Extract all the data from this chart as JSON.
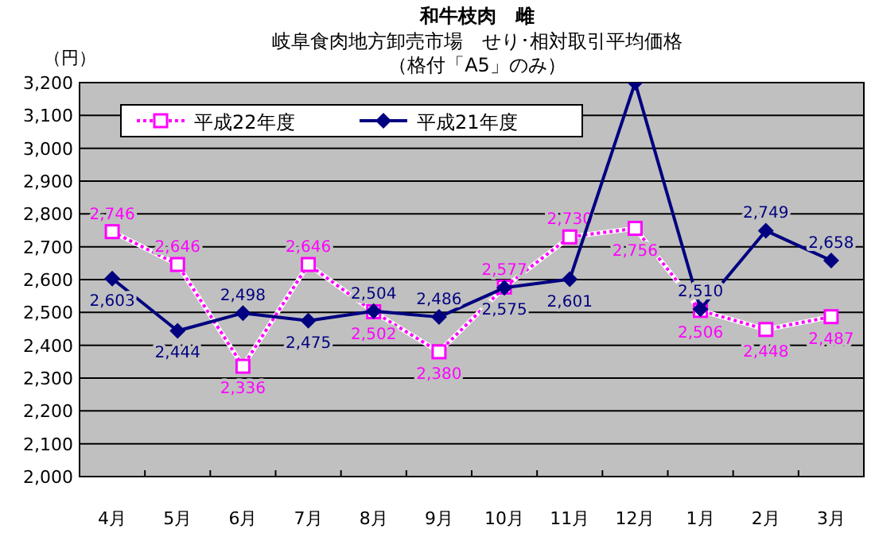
{
  "chart_data": {
    "type": "line",
    "title": "和牛枝肉　雌",
    "subtitle": "岐阜食肉地方卸売市場　せり･相対取引平均価格",
    "annotations": [
      "（格付「A5」のみ）"
    ],
    "ylabel": "（円）",
    "categories": [
      "4月",
      "5月",
      "6月",
      "7月",
      "8月",
      "9月",
      "10月",
      "11月",
      "12月",
      "1月",
      "2月",
      "3月"
    ],
    "series": [
      {
        "name": "平成22年度",
        "color": "#ff00ff",
        "marker": "square",
        "line_style": "dotted",
        "values": [
          2746,
          2646,
          2336,
          2646,
          2502,
          2380,
          2577,
          2730,
          2756,
          2506,
          2448,
          2487
        ],
        "value_labels": [
          "2,746",
          "2,646",
          "2,336",
          "2,646",
          "2,502",
          "2,380",
          "2,577",
          "2,730",
          "2,756",
          "2,506",
          "2,448",
          "2,487"
        ]
      },
      {
        "name": "平成21年度",
        "color": "#000080",
        "marker": "diamond",
        "line_style": "solid",
        "values": [
          2603,
          2444,
          2498,
          2475,
          2504,
          2486,
          2575,
          2601,
          3200,
          2510,
          2749,
          2658
        ],
        "value_labels": [
          "2,603",
          "2,444",
          "2,498",
          "2,475",
          "2,504",
          "2,486",
          "2,575",
          "2,601",
          null,
          "2,510",
          "2,749",
          "2,658"
        ]
      }
    ],
    "ylim": [
      2000,
      3200
    ],
    "yticks": [
      {
        "value": 2000,
        "label": "2,000"
      },
      {
        "value": 2100,
        "label": "2,100"
      },
      {
        "value": 2200,
        "label": "2,200"
      },
      {
        "value": 2300,
        "label": "2,300"
      },
      {
        "value": 2400,
        "label": "2,400"
      },
      {
        "value": 2500,
        "label": "2,500"
      },
      {
        "value": 2600,
        "label": "2,600"
      },
      {
        "value": 2700,
        "label": "2,700"
      },
      {
        "value": 2800,
        "label": "2,800"
      },
      {
        "value": 2900,
        "label": "2,900"
      },
      {
        "value": 3000,
        "label": "3,000"
      },
      {
        "value": 3100,
        "label": "3,100"
      },
      {
        "value": 3200,
        "label": "3,200"
      }
    ],
    "grid": "y",
    "legend": "top left"
  }
}
